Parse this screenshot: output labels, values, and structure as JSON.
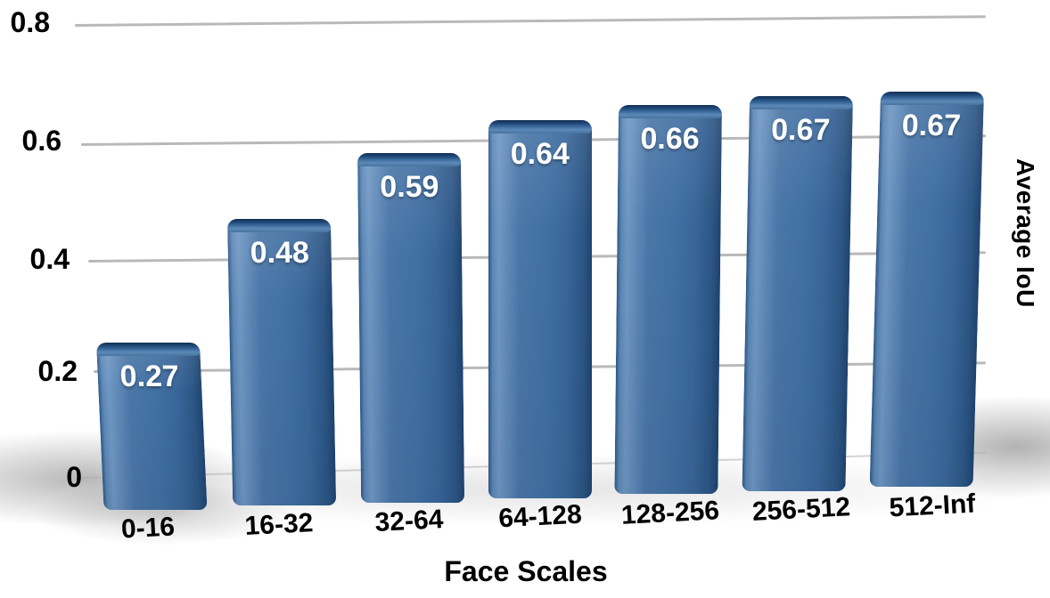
{
  "chart_data": {
    "type": "bar",
    "title": "",
    "xlabel": "Face Scales",
    "ylabel": "Average IoU",
    "categories": [
      "0-16",
      "16-32",
      "32-64",
      "64-128",
      "128-256",
      "256-512",
      "512-Inf"
    ],
    "values": [
      0.27,
      0.48,
      0.59,
      0.64,
      0.66,
      0.67,
      0.67
    ],
    "value_labels": [
      "0.27",
      "0.48",
      "0.59",
      "0.64",
      "0.66",
      "0.67",
      "0.67"
    ],
    "yticks": [
      "0.8",
      "0.6",
      "0.4",
      "0.2",
      "0"
    ],
    "ytick_values": [
      0.8,
      0.6,
      0.4,
      0.2,
      0
    ],
    "ylim": [
      0,
      0.8
    ],
    "grid": true,
    "legend_position": "none",
    "style": "3d-glossy-bars",
    "colors": {
      "bar_main": "#3f6da7",
      "bar_highlight": "#6f97c3",
      "bar_shadow_edge": "#1f436f",
      "bar_cap_dark": "#122f55",
      "value_label": "#ffffff",
      "axis_text": "#000000",
      "gridline": "#b9b9b9",
      "background": "#ffffff"
    }
  }
}
